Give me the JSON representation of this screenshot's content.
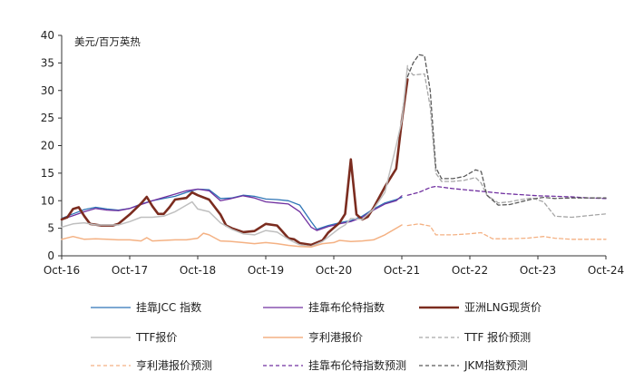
{
  "chart_data": {
    "type": "line",
    "unit_label": "美元/百万英热",
    "xlabel": "",
    "ylabel": "",
    "x_ticks": [
      "Oct-16",
      "Oct-17",
      "Oct-18",
      "Oct-19",
      "Oct-20",
      "Oct-21",
      "Oct-22",
      "Oct-23",
      "Oct-24"
    ],
    "x_range": [
      "2016-10",
      "2024-10"
    ],
    "y_ticks": [
      0,
      5,
      10,
      15,
      20,
      25,
      30,
      35,
      40
    ],
    "ylim": [
      0,
      40
    ],
    "grid": false,
    "legend_position": "bottom",
    "series": [
      {
        "name": "挂靠JCC 指数",
        "color": "#2E75B6",
        "width": 1.3,
        "dash": "",
        "points": [
          [
            "2016-10",
            6.8
          ],
          [
            "2016-12",
            7.6
          ],
          [
            "2017-02",
            8.4
          ],
          [
            "2017-04",
            8.8
          ],
          [
            "2017-06",
            8.5
          ],
          [
            "2017-08",
            8.3
          ],
          [
            "2017-10",
            8.6
          ],
          [
            "2017-12",
            9.4
          ],
          [
            "2018-02",
            10.0
          ],
          [
            "2018-04",
            10.4
          ],
          [
            "2018-06",
            10.8
          ],
          [
            "2018-08",
            11.5
          ],
          [
            "2018-10",
            12.1
          ],
          [
            "2018-12",
            12.0
          ],
          [
            "2019-02",
            10.4
          ],
          [
            "2019-04",
            10.5
          ],
          [
            "2019-06",
            11.0
          ],
          [
            "2019-08",
            10.8
          ],
          [
            "2019-10",
            10.3
          ],
          [
            "2019-12",
            10.2
          ],
          [
            "2020-02",
            10.0
          ],
          [
            "2020-04",
            9.2
          ],
          [
            "2020-06",
            6.2
          ],
          [
            "2020-07",
            4.8
          ],
          [
            "2020-09",
            5.5
          ],
          [
            "2020-11",
            6.0
          ],
          [
            "2021-01",
            6.4
          ],
          [
            "2021-03",
            7.2
          ],
          [
            "2021-05",
            8.5
          ],
          [
            "2021-07",
            9.6
          ],
          [
            "2021-09",
            10.2
          ],
          [
            "2021-10",
            10.6
          ]
        ]
      },
      {
        "name": "挂靠布伦特指数",
        "color": "#7030A0",
        "width": 1.3,
        "dash": "",
        "points": [
          [
            "2016-10",
            6.6
          ],
          [
            "2016-12",
            7.3
          ],
          [
            "2017-02",
            8.0
          ],
          [
            "2017-04",
            8.6
          ],
          [
            "2017-06",
            8.3
          ],
          [
            "2017-08",
            8.2
          ],
          [
            "2017-10",
            8.6
          ],
          [
            "2017-12",
            9.3
          ],
          [
            "2018-02",
            10.0
          ],
          [
            "2018-04",
            10.6
          ],
          [
            "2018-06",
            11.2
          ],
          [
            "2018-08",
            11.8
          ],
          [
            "2018-10",
            12.1
          ],
          [
            "2018-12",
            11.8
          ],
          [
            "2019-02",
            10.0
          ],
          [
            "2019-04",
            10.4
          ],
          [
            "2019-06",
            10.9
          ],
          [
            "2019-08",
            10.5
          ],
          [
            "2019-10",
            9.8
          ],
          [
            "2019-12",
            9.6
          ],
          [
            "2020-02",
            9.4
          ],
          [
            "2020-04",
            8.0
          ],
          [
            "2020-06",
            5.2
          ],
          [
            "2020-07",
            4.6
          ],
          [
            "2020-09",
            5.3
          ],
          [
            "2020-11",
            5.8
          ],
          [
            "2021-01",
            6.2
          ],
          [
            "2021-03",
            7.0
          ],
          [
            "2021-05",
            8.3
          ],
          [
            "2021-07",
            9.4
          ],
          [
            "2021-09",
            10.0
          ],
          [
            "2021-10",
            10.9
          ]
        ]
      },
      {
        "name": "亚洲LNG现货价",
        "color": "#7B2C1F",
        "width": 2.6,
        "dash": "",
        "points": [
          [
            "2016-10",
            6.6
          ],
          [
            "2016-11",
            7.0
          ],
          [
            "2016-12",
            8.5
          ],
          [
            "2017-01",
            8.8
          ],
          [
            "2017-02",
            7.2
          ],
          [
            "2017-03",
            5.8
          ],
          [
            "2017-05",
            5.5
          ],
          [
            "2017-07",
            5.5
          ],
          [
            "2017-08",
            5.8
          ],
          [
            "2017-10",
            7.5
          ],
          [
            "2017-12",
            9.5
          ],
          [
            "2018-01",
            10.7
          ],
          [
            "2018-02",
            9.0
          ],
          [
            "2018-03",
            7.6
          ],
          [
            "2018-04",
            7.6
          ],
          [
            "2018-05",
            8.8
          ],
          [
            "2018-06",
            10.2
          ],
          [
            "2018-08",
            10.5
          ],
          [
            "2018-09",
            11.5
          ],
          [
            "2018-10",
            11.0
          ],
          [
            "2018-12",
            10.2
          ],
          [
            "2019-02",
            7.5
          ],
          [
            "2019-03",
            5.5
          ],
          [
            "2019-04",
            5.0
          ],
          [
            "2019-06",
            4.3
          ],
          [
            "2019-08",
            4.5
          ],
          [
            "2019-10",
            5.8
          ],
          [
            "2019-12",
            5.5
          ],
          [
            "2020-02",
            3.2
          ],
          [
            "2020-03",
            3.0
          ],
          [
            "2020-04",
            2.3
          ],
          [
            "2020-06",
            2.0
          ],
          [
            "2020-08",
            2.8
          ],
          [
            "2020-09",
            4.2
          ],
          [
            "2020-11",
            6.0
          ],
          [
            "2020-12",
            7.6
          ],
          [
            "2021-01",
            17.5
          ],
          [
            "2021-02",
            7.5
          ],
          [
            "2021-03",
            6.6
          ],
          [
            "2021-04",
            7.1
          ],
          [
            "2021-05",
            8.7
          ],
          [
            "2021-07",
            12.5
          ],
          [
            "2021-09",
            15.8
          ],
          [
            "2021-10",
            24.5
          ],
          [
            "2021-11",
            32.0
          ]
        ]
      },
      {
        "name": "TTF报价",
        "color": "#BFBFBF",
        "width": 1.5,
        "dash": "",
        "points": [
          [
            "2016-10",
            5.2
          ],
          [
            "2016-12",
            5.8
          ],
          [
            "2017-02",
            6.0
          ],
          [
            "2017-04",
            5.6
          ],
          [
            "2017-06",
            5.6
          ],
          [
            "2017-08",
            5.6
          ],
          [
            "2017-10",
            6.2
          ],
          [
            "2017-12",
            7.0
          ],
          [
            "2018-02",
            7.0
          ],
          [
            "2018-04",
            7.2
          ],
          [
            "2018-06",
            8.0
          ],
          [
            "2018-08",
            9.2
          ],
          [
            "2018-09",
            9.8
          ],
          [
            "2018-10",
            8.5
          ],
          [
            "2018-12",
            8.0
          ],
          [
            "2019-02",
            6.0
          ],
          [
            "2019-04",
            4.8
          ],
          [
            "2019-06",
            4.0
          ],
          [
            "2019-08",
            3.8
          ],
          [
            "2019-10",
            4.6
          ],
          [
            "2019-12",
            4.3
          ],
          [
            "2020-02",
            3.0
          ],
          [
            "2020-04",
            2.0
          ],
          [
            "2020-06",
            1.7
          ],
          [
            "2020-08",
            2.6
          ],
          [
            "2020-09",
            3.4
          ],
          [
            "2020-11",
            5.0
          ],
          [
            "2020-12",
            5.6
          ],
          [
            "2021-01",
            6.8
          ],
          [
            "2021-03",
            6.6
          ],
          [
            "2021-05",
            8.5
          ],
          [
            "2021-07",
            11.5
          ],
          [
            "2021-09",
            20.0
          ],
          [
            "2021-10",
            24.5
          ],
          [
            "2021-11",
            34.5
          ]
        ]
      },
      {
        "name": "亨利港报价",
        "color": "#F4B183",
        "width": 1.5,
        "dash": "",
        "points": [
          [
            "2016-10",
            3.0
          ],
          [
            "2016-12",
            3.5
          ],
          [
            "2017-02",
            3.0
          ],
          [
            "2017-04",
            3.1
          ],
          [
            "2017-06",
            3.0
          ],
          [
            "2017-08",
            2.9
          ],
          [
            "2017-10",
            2.9
          ],
          [
            "2017-12",
            2.7
          ],
          [
            "2018-01",
            3.3
          ],
          [
            "2018-02",
            2.7
          ],
          [
            "2018-04",
            2.8
          ],
          [
            "2018-06",
            2.9
          ],
          [
            "2018-08",
            2.9
          ],
          [
            "2018-10",
            3.2
          ],
          [
            "2018-11",
            4.1
          ],
          [
            "2018-12",
            3.8
          ],
          [
            "2019-02",
            2.7
          ],
          [
            "2019-04",
            2.6
          ],
          [
            "2019-06",
            2.4
          ],
          [
            "2019-08",
            2.2
          ],
          [
            "2019-10",
            2.4
          ],
          [
            "2019-12",
            2.2
          ],
          [
            "2020-02",
            1.9
          ],
          [
            "2020-04",
            1.7
          ],
          [
            "2020-06",
            1.6
          ],
          [
            "2020-08",
            2.2
          ],
          [
            "2020-10",
            2.4
          ],
          [
            "2020-11",
            2.8
          ],
          [
            "2021-01",
            2.6
          ],
          [
            "2021-03",
            2.7
          ],
          [
            "2021-05",
            2.9
          ],
          [
            "2021-07",
            3.8
          ],
          [
            "2021-09",
            5.0
          ],
          [
            "2021-10",
            5.6
          ]
        ]
      },
      {
        "name": "TTF 报价预测",
        "color": "#A6A6A6",
        "width": 1.3,
        "dash": "4,3",
        "points": [
          [
            "2021-11",
            34.0
          ],
          [
            "2021-12",
            32.8
          ],
          [
            "2022-02",
            33.0
          ],
          [
            "2022-03",
            27.0
          ],
          [
            "2022-04",
            15.0
          ],
          [
            "2022-05",
            13.5
          ],
          [
            "2022-07",
            13.5
          ],
          [
            "2022-09",
            13.7
          ],
          [
            "2022-11",
            14.2
          ],
          [
            "2022-12",
            13.2
          ],
          [
            "2023-01",
            11.0
          ],
          [
            "2023-03",
            9.6
          ],
          [
            "2023-05",
            9.8
          ],
          [
            "2023-07",
            10.2
          ],
          [
            "2023-09",
            10.5
          ],
          [
            "2023-11",
            9.8
          ],
          [
            "2023-12",
            8.5
          ],
          [
            "2024-01",
            7.2
          ],
          [
            "2024-04",
            7.0
          ],
          [
            "2024-08",
            7.4
          ],
          [
            "2024-10",
            7.6
          ]
        ]
      },
      {
        "name": "亨利港报价预测",
        "color": "#F4B183",
        "width": 1.3,
        "dash": "4,3",
        "points": [
          [
            "2021-11",
            5.5
          ],
          [
            "2022-01",
            5.8
          ],
          [
            "2022-03",
            5.4
          ],
          [
            "2022-04",
            3.8
          ],
          [
            "2022-07",
            3.8
          ],
          [
            "2022-10",
            4.0
          ],
          [
            "2022-12",
            4.2
          ],
          [
            "2023-02",
            3.1
          ],
          [
            "2023-05",
            3.1
          ],
          [
            "2023-08",
            3.2
          ],
          [
            "2023-11",
            3.5
          ],
          [
            "2024-01",
            3.2
          ],
          [
            "2024-04",
            3.0
          ],
          [
            "2024-07",
            3.0
          ],
          [
            "2024-10",
            3.0
          ]
        ]
      },
      {
        "name": "挂靠布伦特指数预测",
        "color": "#7030A0",
        "width": 1.3,
        "dash": "4,3",
        "points": [
          [
            "2021-11",
            11.0
          ],
          [
            "2022-01",
            11.5
          ],
          [
            "2022-03",
            12.4
          ],
          [
            "2022-04",
            12.6
          ],
          [
            "2022-07",
            12.2
          ],
          [
            "2022-10",
            11.9
          ],
          [
            "2023-01",
            11.6
          ],
          [
            "2023-04",
            11.3
          ],
          [
            "2023-07",
            11.1
          ],
          [
            "2023-10",
            10.9
          ],
          [
            "2024-01",
            10.8
          ],
          [
            "2024-04",
            10.7
          ],
          [
            "2024-07",
            10.5
          ],
          [
            "2024-10",
            10.4
          ]
        ]
      },
      {
        "name": "JKM指数预测",
        "color": "#595959",
        "width": 1.3,
        "dash": "4,3",
        "points": [
          [
            "2021-11",
            32.5
          ],
          [
            "2021-12",
            35.0
          ],
          [
            "2022-01",
            36.5
          ],
          [
            "2022-02",
            36.3
          ],
          [
            "2022-03",
            30.0
          ],
          [
            "2022-04",
            16.0
          ],
          [
            "2022-05",
            14.0
          ],
          [
            "2022-07",
            14.0
          ],
          [
            "2022-09",
            14.4
          ],
          [
            "2022-11",
            15.6
          ],
          [
            "2022-12",
            15.3
          ],
          [
            "2023-01",
            11.0
          ],
          [
            "2023-03",
            9.2
          ],
          [
            "2023-05",
            9.3
          ],
          [
            "2023-07",
            9.8
          ],
          [
            "2023-09",
            10.3
          ],
          [
            "2023-11",
            10.6
          ],
          [
            "2024-01",
            10.4
          ],
          [
            "2024-04",
            10.5
          ],
          [
            "2024-07",
            10.5
          ],
          [
            "2024-10",
            10.5
          ]
        ]
      }
    ]
  }
}
